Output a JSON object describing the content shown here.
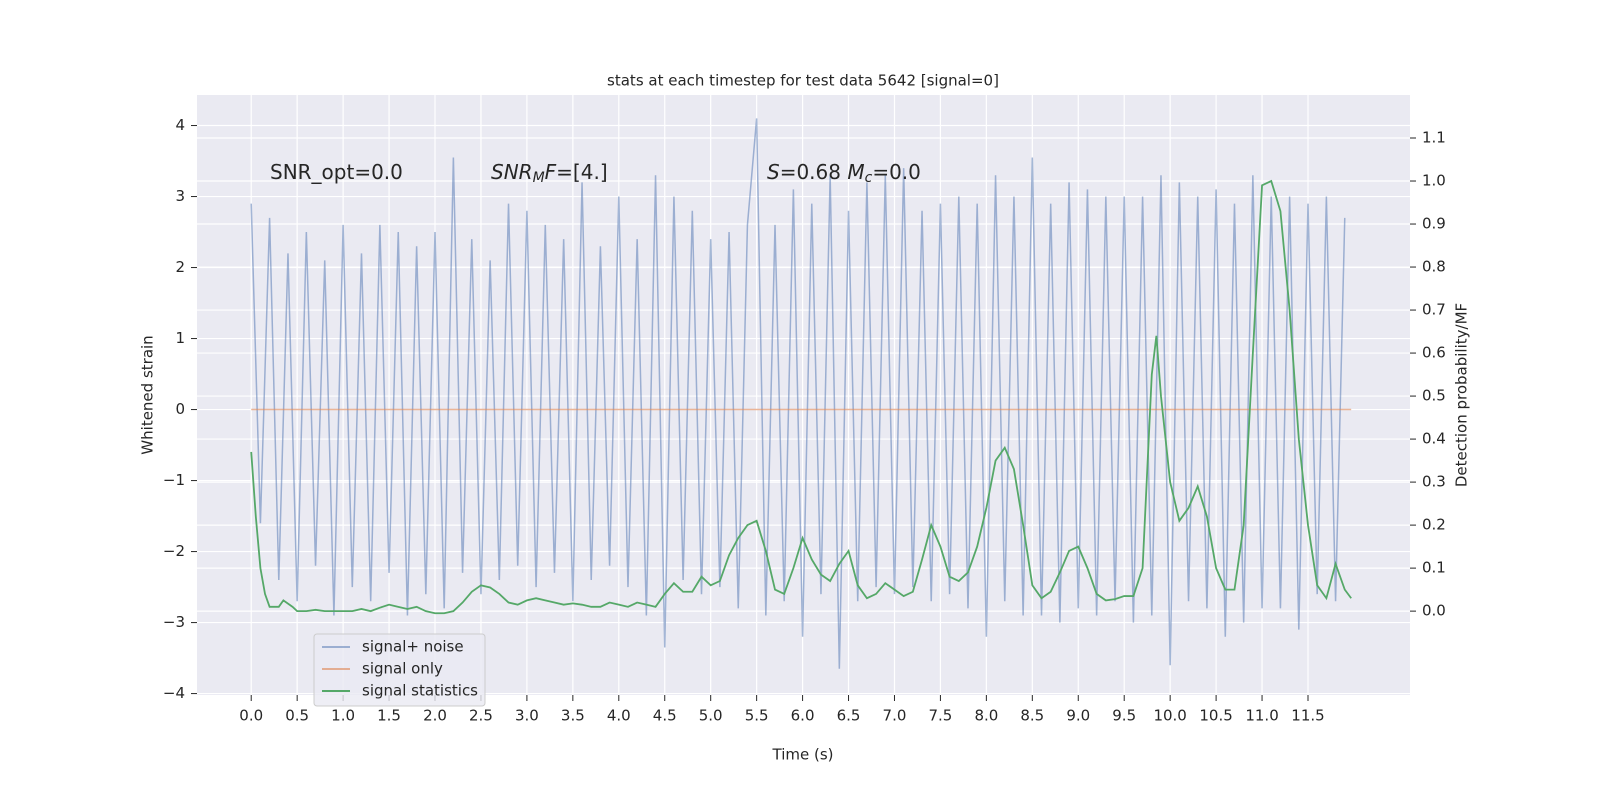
{
  "chart_data": {
    "type": "line",
    "title": "stats at each timestep for test data 5642 [signal=0]",
    "x_label": "Time (s)",
    "y_label": "Whitened strain",
    "y2_label": "Detection probability/MF",
    "xlim": [
      -0.59,
      12.61
    ],
    "ylim": [
      -4.02,
      4.43
    ],
    "y2lim": [
      -0.195,
      1.2
    ],
    "xticks": [
      {
        "value": 0,
        "label": "0.0"
      },
      0.5,
      {
        "value": 1,
        "label": "1.0"
      },
      1.5,
      {
        "value": 2,
        "label": "2.0"
      },
      2.5,
      {
        "value": 3,
        "label": "3.0"
      },
      3.5,
      {
        "value": 4,
        "label": "4.0"
      },
      4.5,
      {
        "value": 5,
        "label": "5.0"
      },
      5.5,
      {
        "value": 6,
        "label": "6.0"
      },
      6.5,
      {
        "value": 7,
        "label": "7.0"
      },
      7.5,
      {
        "value": 8,
        "label": "8.0"
      },
      8.5,
      {
        "value": 9,
        "label": "9.0"
      },
      9.5,
      {
        "value": 10,
        "label": "10.0"
      },
      10.5,
      {
        "value": 11,
        "label": "11.0"
      },
      11.5
    ],
    "yticks": [
      {
        "value": -4,
        "label": "−4"
      },
      {
        "value": -3,
        "label": "−3"
      },
      {
        "value": -2,
        "label": "−2"
      },
      {
        "value": -1,
        "label": "−1"
      },
      0,
      1,
      2,
      3,
      4
    ],
    "y2ticks": [
      {
        "value": 0,
        "label": "0.0"
      },
      0.1,
      0.2,
      0.3,
      0.4,
      0.5,
      0.6,
      0.7,
      0.8,
      0.9,
      {
        "value": 1,
        "label": "1.0"
      },
      1.1
    ],
    "grid": true,
    "legend": "lower left",
    "annotations": [
      [
        {
          "text": "SNR_opt=0.0",
          "style": "normal"
        }
      ],
      [
        {
          "text": "SNR",
          "style": "italic"
        },
        {
          "text": "M",
          "style": "sub"
        },
        {
          "text": "F",
          "style": "italic"
        },
        {
          "text": "=[4.]",
          "style": "normal"
        }
      ],
      [
        {
          "text": "S",
          "style": "italic"
        },
        {
          "text": "=0.68   ",
          "style": "normal"
        },
        {
          "text": "M",
          "style": "italic"
        },
        {
          "text": "c",
          "style": "sub"
        },
        {
          "text": "=0.0",
          "style": "normal"
        }
      ]
    ],
    "series": [
      {
        "name": "signal+ noise",
        "color": "#4c72b0",
        "opacity": 0.5,
        "axis": "y",
        "x": [
          0,
          0.1,
          0.2,
          0.3,
          0.4,
          0.5,
          0.6,
          0.7,
          0.8,
          0.9,
          1,
          1.1,
          1.2,
          1.3,
          1.4,
          1.5,
          1.6,
          1.7,
          1.8,
          1.9,
          2,
          2.1,
          2.2,
          2.3,
          2.4,
          2.5,
          2.6,
          2.7,
          2.8,
          2.9,
          3,
          3.1,
          3.2,
          3.3,
          3.4,
          3.5,
          3.6,
          3.7,
          3.8,
          3.9,
          4,
          4.1,
          4.2,
          4.3,
          4.4,
          4.5,
          4.6,
          4.7,
          4.8,
          4.9,
          5,
          5.1,
          5.2,
          5.3,
          5.4,
          5.5,
          5.6,
          5.7,
          5.8,
          5.9,
          6,
          6.1,
          6.2,
          6.3,
          6.4,
          6.5,
          6.6,
          6.7,
          6.8,
          6.9,
          7,
          7.1,
          7.2,
          7.3,
          7.4,
          7.5,
          7.6,
          7.7,
          7.8,
          7.9,
          8,
          8.1,
          8.2,
          8.3,
          8.4,
          8.5,
          8.6,
          8.7,
          8.8,
          8.9,
          9,
          9.1,
          9.2,
          9.3,
          9.4,
          9.5,
          9.6,
          9.7,
          9.8,
          9.9,
          10,
          10.1,
          10.2,
          10.3,
          10.4,
          10.5,
          10.6,
          10.7,
          10.8,
          10.9,
          11,
          11.1,
          11.2,
          11.3,
          11.4,
          11.5,
          11.6,
          11.7,
          11.8,
          11.9
        ],
        "values": [
          2.9,
          -1.6,
          2.7,
          -2.4,
          2.2,
          -2.7,
          2.5,
          -2.2,
          2.1,
          -2.9,
          2.6,
          -2.5,
          2.2,
          -2.7,
          2.6,
          -2.3,
          2.5,
          -2.9,
          2.3,
          -2.6,
          2.5,
          -2.8,
          3.55,
          -2.3,
          2.4,
          -2.6,
          2.1,
          -2.4,
          2.9,
          -2.2,
          2.8,
          -2.5,
          2.6,
          -2.3,
          2.4,
          -2.7,
          3.2,
          -2.4,
          2.3,
          -2.2,
          3.0,
          -2.5,
          2.4,
          -2.9,
          3.3,
          -3.35,
          3.0,
          -2.4,
          2.8,
          -2.6,
          2.4,
          -2.5,
          2.5,
          -2.8,
          2.6,
          4.1,
          -2.9,
          2.6,
          -2.7,
          3.1,
          -3.2,
          2.9,
          -2.6,
          3.3,
          -3.65,
          2.8,
          -2.7,
          3.2,
          -2.5,
          3.3,
          -2.6,
          3.4,
          -2.5,
          2.8,
          -2.7,
          2.9,
          -2.6,
          3.0,
          -2.8,
          2.9,
          -3.2,
          3.3,
          -2.7,
          3.0,
          -2.9,
          3.55,
          -2.9,
          2.9,
          -3.0,
          3.2,
          -2.8,
          3.1,
          -2.9,
          3.0,
          -2.7,
          3.0,
          -3.0,
          3.0,
          -2.9,
          3.3,
          -3.6,
          3.2,
          -2.7,
          3.0,
          -2.8,
          3.1,
          -3.2,
          2.9,
          -3.0,
          3.3,
          -2.8,
          3.0,
          -2.8,
          3.0,
          -3.1,
          2.9,
          -2.6,
          3.0,
          -2.7,
          2.7
        ]
      },
      {
        "name": "signal only",
        "color": "#dd8452",
        "opacity": 0.6,
        "axis": "y",
        "x": [
          0,
          11.97
        ],
        "values": [
          0,
          0
        ]
      },
      {
        "name": "signal statistics",
        "color": "#55a868",
        "opacity": 1,
        "axis": "y2",
        "x": [
          0,
          0.05,
          0.1,
          0.15,
          0.2,
          0.3,
          0.35,
          0.45,
          0.5,
          0.6,
          0.7,
          0.8,
          0.9,
          1,
          1.1,
          1.2,
          1.3,
          1.4,
          1.5,
          1.6,
          1.7,
          1.8,
          1.9,
          2,
          2.1,
          2.2,
          2.3,
          2.4,
          2.5,
          2.6,
          2.7,
          2.8,
          2.9,
          3,
          3.1,
          3.2,
          3.3,
          3.4,
          3.5,
          3.6,
          3.7,
          3.8,
          3.9,
          4,
          4.1,
          4.2,
          4.3,
          4.4,
          4.5,
          4.6,
          4.7,
          4.8,
          4.9,
          5,
          5.1,
          5.2,
          5.3,
          5.4,
          5.5,
          5.6,
          5.7,
          5.8,
          5.9,
          6,
          6.1,
          6.2,
          6.3,
          6.4,
          6.5,
          6.6,
          6.7,
          6.8,
          6.9,
          7,
          7.1,
          7.2,
          7.3,
          7.4,
          7.5,
          7.6,
          7.7,
          7.8,
          7.9,
          8,
          8.1,
          8.2,
          8.3,
          8.4,
          8.5,
          8.6,
          8.7,
          8.8,
          8.9,
          9,
          9.1,
          9.2,
          9.3,
          9.4,
          9.5,
          9.6,
          9.7,
          9.8,
          9.85,
          9.9,
          10,
          10.1,
          10.2,
          10.3,
          10.4,
          10.5,
          10.6,
          10.7,
          10.8,
          10.9,
          11,
          11.1,
          11.2,
          11.3,
          11.4,
          11.5,
          11.6,
          11.7,
          11.8,
          11.9,
          11.97
        ],
        "values": [
          0.37,
          0.22,
          0.1,
          0.04,
          0.01,
          0.01,
          0.025,
          0.01,
          0.0,
          0.0,
          0.003,
          0.0,
          0.0,
          0.0,
          0.0,
          0.005,
          0.0,
          0.008,
          0.015,
          0.01,
          0.005,
          0.01,
          0.0,
          -0.005,
          -0.005,
          0.0,
          0.02,
          0.045,
          0.06,
          0.055,
          0.04,
          0.02,
          0.015,
          0.025,
          0.03,
          0.025,
          0.02,
          0.015,
          0.018,
          0.015,
          0.01,
          0.01,
          0.02,
          0.015,
          0.01,
          0.02,
          0.015,
          0.01,
          0.04,
          0.065,
          0.045,
          0.045,
          0.08,
          0.06,
          0.07,
          0.13,
          0.17,
          0.2,
          0.21,
          0.14,
          0.05,
          0.04,
          0.1,
          0.17,
          0.12,
          0.085,
          0.07,
          0.11,
          0.14,
          0.06,
          0.03,
          0.04,
          0.065,
          0.05,
          0.035,
          0.045,
          0.12,
          0.2,
          0.15,
          0.08,
          0.07,
          0.09,
          0.15,
          0.24,
          0.35,
          0.38,
          0.33,
          0.2,
          0.06,
          0.03,
          0.045,
          0.09,
          0.14,
          0.15,
          0.1,
          0.04,
          0.025,
          0.028,
          0.035,
          0.035,
          0.1,
          0.55,
          0.64,
          0.5,
          0.3,
          0.21,
          0.24,
          0.29,
          0.22,
          0.1,
          0.05,
          0.05,
          0.2,
          0.6,
          0.99,
          1.0,
          0.93,
          0.7,
          0.4,
          0.2,
          0.06,
          0.03,
          0.11,
          0.05,
          0.03
        ]
      }
    ]
  }
}
